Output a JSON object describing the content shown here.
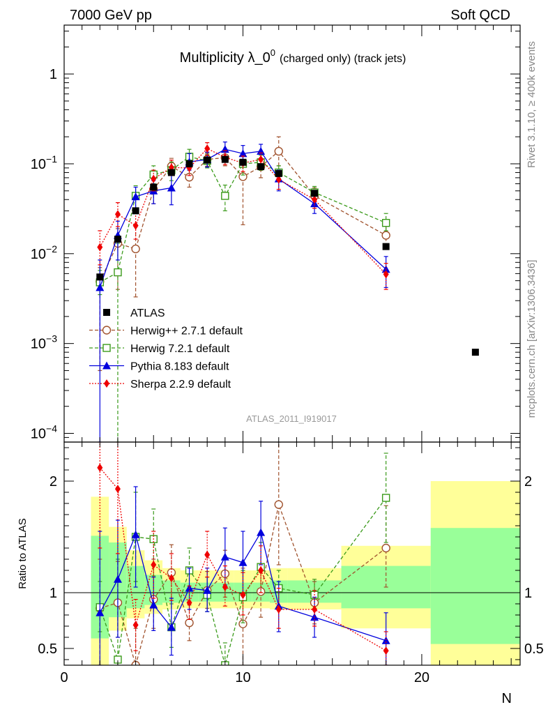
{
  "header": {
    "left": "7000 GeV pp",
    "right": "Soft QCD"
  },
  "side_labels": {
    "rivet": "Rivet 3.1.10, ≥ 400k events",
    "mcplots": "mcplots.cern.ch [arXiv:1306.3436]"
  },
  "chart_data": [
    {
      "type": "scatter",
      "panel": "main",
      "title": "Multiplicity λ_0",
      "title_sup": "0",
      "title_suffix": "(charged only) (track jets)",
      "watermark": "ATLAS_2011_I919017",
      "xlabel": "N",
      "ylabel": "",
      "yscale": "log",
      "xlim": [
        0,
        25.5
      ],
      "ylim": [
        8e-05,
        3.5
      ],
      "yticks": [
        0.0001,
        0.001,
        0.01,
        0.1,
        1
      ],
      "ytick_labels": [
        {
          "base": "10",
          "exp": "−4"
        },
        {
          "base": "10",
          "exp": "−3"
        },
        {
          "base": "10",
          "exp": "−2"
        },
        {
          "base": "10",
          "exp": "−1"
        },
        {
          "base": "1",
          "exp": ""
        }
      ],
      "legend": [
        {
          "label": "ATLAS",
          "color": "#000000",
          "marker": "square-filled",
          "line": "none"
        },
        {
          "label": "Herwig++ 2.7.1 default",
          "color": "#a0522d",
          "marker": "circle-open",
          "line": "dashed"
        },
        {
          "label": "Herwig 7.2.1 default",
          "color": "#3a9a1a",
          "marker": "square-open",
          "line": "dashed"
        },
        {
          "label": "Pythia 8.183 default",
          "color": "#0000dd",
          "marker": "triangle-filled",
          "line": "solid"
        },
        {
          "label": "Sherpa 2.2.9 default",
          "color": "#ee0000",
          "marker": "diamond-filled",
          "line": "dotted"
        }
      ],
      "series": [
        {
          "name": "ATLAS",
          "x": [
            2,
            3,
            4,
            5,
            6,
            7,
            8,
            9,
            10,
            11,
            12,
            14,
            18,
            23
          ],
          "y": [
            0.0055,
            0.0145,
            0.03,
            0.055,
            0.08,
            0.1,
            0.11,
            0.112,
            0.104,
            0.093,
            0.078,
            0.047,
            0.012,
            0.0008
          ]
        },
        {
          "name": "Herwig++ 2.7.1 default",
          "x": [
            2,
            3,
            4,
            5,
            6,
            7,
            8,
            9,
            10,
            11,
            12,
            14,
            18
          ],
          "y": [
            0.0049,
            0.013,
            0.0113,
            0.052,
            0.094,
            0.071,
            0.112,
            0.117,
            0.072,
            0.093,
            0.138,
            0.044,
            0.016
          ],
          "lo": [
            0.0005,
            0.004,
            0.0033,
            0.036,
            0.075,
            0.055,
            0.094,
            0.095,
            0.021,
            0.07,
            0.095,
            0.034,
            0.012
          ],
          "hi": [
            0.007,
            0.019,
            0.021,
            0.071,
            0.115,
            0.085,
            0.132,
            0.142,
            0.125,
            0.115,
            0.2,
            0.054,
            0.021
          ]
        },
        {
          "name": "Herwig 7.2.1 default",
          "x": [
            2,
            3,
            4,
            5,
            6,
            7,
            8,
            9,
            10,
            11,
            12,
            14,
            18
          ],
          "y": [
            0.0048,
            0.0062,
            0.044,
            0.076,
            0.085,
            0.12,
            0.108,
            0.044,
            0.1,
            0.104,
            0.08,
            0.048,
            0.022
          ],
          "lo": [
            0.0035,
            8e-05,
            0.032,
            0.06,
            0.065,
            0.1,
            0.09,
            0.03,
            0.075,
            0.085,
            0.066,
            0.04,
            0.018
          ],
          "hi": [
            0.0065,
            0.013,
            0.057,
            0.095,
            0.105,
            0.145,
            0.128,
            0.058,
            0.125,
            0.125,
            0.095,
            0.056,
            0.028
          ]
        },
        {
          "name": "Pythia 8.183 default",
          "x": [
            2,
            3,
            4,
            5,
            6,
            7,
            8,
            9,
            10,
            11,
            12,
            14,
            18
          ],
          "y": [
            0.0042,
            0.016,
            0.043,
            0.05,
            0.054,
            0.105,
            0.112,
            0.145,
            0.13,
            0.138,
            0.068,
            0.036,
            0.0067
          ],
          "lo": [
            8e-05,
            0.0085,
            0.03,
            0.036,
            0.035,
            0.085,
            0.092,
            0.118,
            0.1,
            0.11,
            0.05,
            0.028,
            0.0042
          ],
          "hi": [
            0.0085,
            0.023,
            0.055,
            0.065,
            0.075,
            0.13,
            0.135,
            0.175,
            0.16,
            0.165,
            0.085,
            0.045,
            0.0093
          ]
        },
        {
          "name": "Sherpa 2.2.9 default",
          "x": [
            2,
            3,
            4,
            5,
            6,
            7,
            8,
            9,
            10,
            11,
            12,
            14,
            18
          ],
          "y": [
            0.0118,
            0.0275,
            0.0205,
            0.068,
            0.091,
            0.09,
            0.148,
            0.118,
            0.102,
            0.112,
            0.067,
            0.04,
            0.0059
          ],
          "lo": [
            0.0075,
            0.02,
            0.0145,
            0.05,
            0.074,
            0.074,
            0.125,
            0.098,
            0.082,
            0.092,
            0.052,
            0.032,
            0.004
          ],
          "hi": [
            0.018,
            0.037,
            0.028,
            0.085,
            0.11,
            0.108,
            0.172,
            0.14,
            0.122,
            0.132,
            0.082,
            0.049,
            0.0078
          ]
        }
      ]
    },
    {
      "type": "line",
      "panel": "ratio",
      "xlabel": "N",
      "ylabel": "Ratio to ATLAS",
      "xlim": [
        0,
        25.5
      ],
      "ylim": [
        0.35,
        2.35
      ],
      "yticks": [
        0.5,
        1,
        2
      ],
      "ytick_labels": [
        "0.5",
        "1",
        "2"
      ],
      "xticks": [
        0,
        10,
        20
      ],
      "xtick_labels": [
        "0",
        "10",
        "20"
      ],
      "bands": [
        {
          "x0": 1.5,
          "x1": 2.5,
          "y_lo": 0.35,
          "y_hi": 1.86,
          "g_lo": 0.59,
          "g_hi": 1.51
        },
        {
          "x0": 2.5,
          "x1": 3.5,
          "y_lo": 0.66,
          "y_hi": 1.59,
          "g_lo": 0.78,
          "g_hi": 1.45
        },
        {
          "x0": 3.5,
          "x1": 4.5,
          "y_lo": 0.77,
          "y_hi": 1.38,
          "g_lo": 0.86,
          "g_hi": 1.24
        },
        {
          "x0": 4.5,
          "x1": 5.5,
          "y_lo": 0.81,
          "y_hi": 1.29,
          "g_lo": 0.89,
          "g_hi": 1.16
        },
        {
          "x0": 5.5,
          "x1": 6.5,
          "y_lo": 0.85,
          "y_hi": 1.22,
          "g_lo": 0.91,
          "g_hi": 1.11
        },
        {
          "x0": 6.5,
          "x1": 7.5,
          "y_lo": 0.86,
          "y_hi": 1.2,
          "g_lo": 0.92,
          "g_hi": 1.09
        },
        {
          "x0": 7.5,
          "x1": 8.5,
          "y_lo": 0.86,
          "y_hi": 1.2,
          "g_lo": 0.92,
          "g_hi": 1.09
        },
        {
          "x0": 8.5,
          "x1": 9.5,
          "y_lo": 0.86,
          "y_hi": 1.2,
          "g_lo": 0.92,
          "g_hi": 1.09
        },
        {
          "x0": 9.5,
          "x1": 10.5,
          "y_lo": 0.86,
          "y_hi": 1.2,
          "g_lo": 0.92,
          "g_hi": 1.09
        },
        {
          "x0": 10.5,
          "x1": 11.5,
          "y_lo": 0.86,
          "y_hi": 1.2,
          "g_lo": 0.92,
          "g_hi": 1.09
        },
        {
          "x0": 11.5,
          "x1": 12.5,
          "y_lo": 0.85,
          "y_hi": 1.22,
          "g_lo": 0.91,
          "g_hi": 1.11
        },
        {
          "x0": 12.5,
          "x1": 15.5,
          "y_lo": 0.85,
          "y_hi": 1.22,
          "g_lo": 0.91,
          "g_hi": 1.11
        },
        {
          "x0": 15.5,
          "x1": 20.5,
          "y_lo": 0.68,
          "y_hi": 1.42,
          "g_lo": 0.86,
          "g_hi": 1.24
        },
        {
          "x0": 20.5,
          "x1": 25.5,
          "y_lo": 0.35,
          "y_hi": 2.0,
          "g_lo": 0.54,
          "g_hi": 1.58
        }
      ],
      "series": [
        {
          "name": "Herwig++ 2.7.1 default",
          "x": [
            2,
            3,
            4,
            5,
            6,
            7,
            8,
            9,
            10,
            11,
            12,
            14,
            18
          ],
          "y": [
            0.86,
            0.91,
            0.35,
            0.94,
            1.18,
            0.73,
            1.02,
            1.17,
            0.72,
            1.01,
            1.79,
            0.91,
            1.4
          ],
          "lo": [
            0.35,
            0.6,
            0.35,
            0.68,
            0.95,
            0.57,
            0.86,
            0.96,
            0.35,
            0.78,
            1.25,
            0.72,
            1.05
          ],
          "hi": [
            1.3,
            1.28,
            0.68,
            1.3,
            1.43,
            0.89,
            1.19,
            1.38,
            1.22,
            1.25,
            2.35,
            1.1,
            1.78
          ]
        },
        {
          "name": "Herwig 7.2.1 default",
          "x": [
            2,
            3,
            4,
            5,
            6,
            7,
            8,
            9,
            10,
            11,
            12,
            14,
            18
          ],
          "y": [
            0.87,
            0.4,
            1.5,
            1.48,
            0.69,
            1.2,
            0.98,
            0.35,
            0.96,
            1.23,
            1.04,
            0.98,
            1.85
          ],
          "lo": [
            0.65,
            0.35,
            1.1,
            1.15,
            0.51,
            1.0,
            0.83,
            0.35,
            0.73,
            1.0,
            0.88,
            0.85,
            1.45
          ],
          "hi": [
            1.1,
            1.3,
            1.9,
            1.75,
            0.9,
            1.4,
            1.14,
            0.55,
            1.2,
            1.45,
            1.2,
            1.12,
            2.25
          ]
        },
        {
          "name": "Pythia 8.183 default",
          "x": [
            2,
            3,
            4,
            5,
            6,
            7,
            8,
            9,
            10,
            11,
            12,
            14,
            18
          ],
          "y": [
            0.82,
            1.12,
            1.52,
            0.89,
            0.69,
            1.04,
            1.02,
            1.32,
            1.27,
            1.54,
            0.88,
            0.78,
            0.57
          ],
          "lo": [
            0.35,
            0.6,
            1.05,
            0.66,
            0.44,
            0.85,
            0.83,
            1.07,
            0.98,
            1.25,
            0.65,
            0.6,
            0.35
          ],
          "hi": [
            1.55,
            1.65,
            1.95,
            1.14,
            0.95,
            1.22,
            1.22,
            1.58,
            1.55,
            1.82,
            1.1,
            0.96,
            0.82
          ]
        },
        {
          "name": "Sherpa 2.2.9 default",
          "x": [
            2,
            3,
            4,
            5,
            6,
            7,
            8,
            9,
            10,
            11,
            12,
            14,
            18
          ],
          "y": [
            2.12,
            1.93,
            0.71,
            1.25,
            1.13,
            0.91,
            1.34,
            1.05,
            0.98,
            1.2,
            0.85,
            0.85,
            0.48
          ],
          "lo": [
            1.4,
            1.35,
            0.48,
            0.95,
            0.93,
            0.76,
            1.14,
            0.88,
            0.8,
            1.0,
            0.68,
            0.7,
            0.35
          ],
          "hi": [
            2.35,
            2.35,
            0.94,
            1.55,
            1.35,
            1.06,
            1.55,
            1.24,
            1.18,
            1.42,
            1.04,
            1.02,
            0.65
          ]
        }
      ]
    }
  ]
}
